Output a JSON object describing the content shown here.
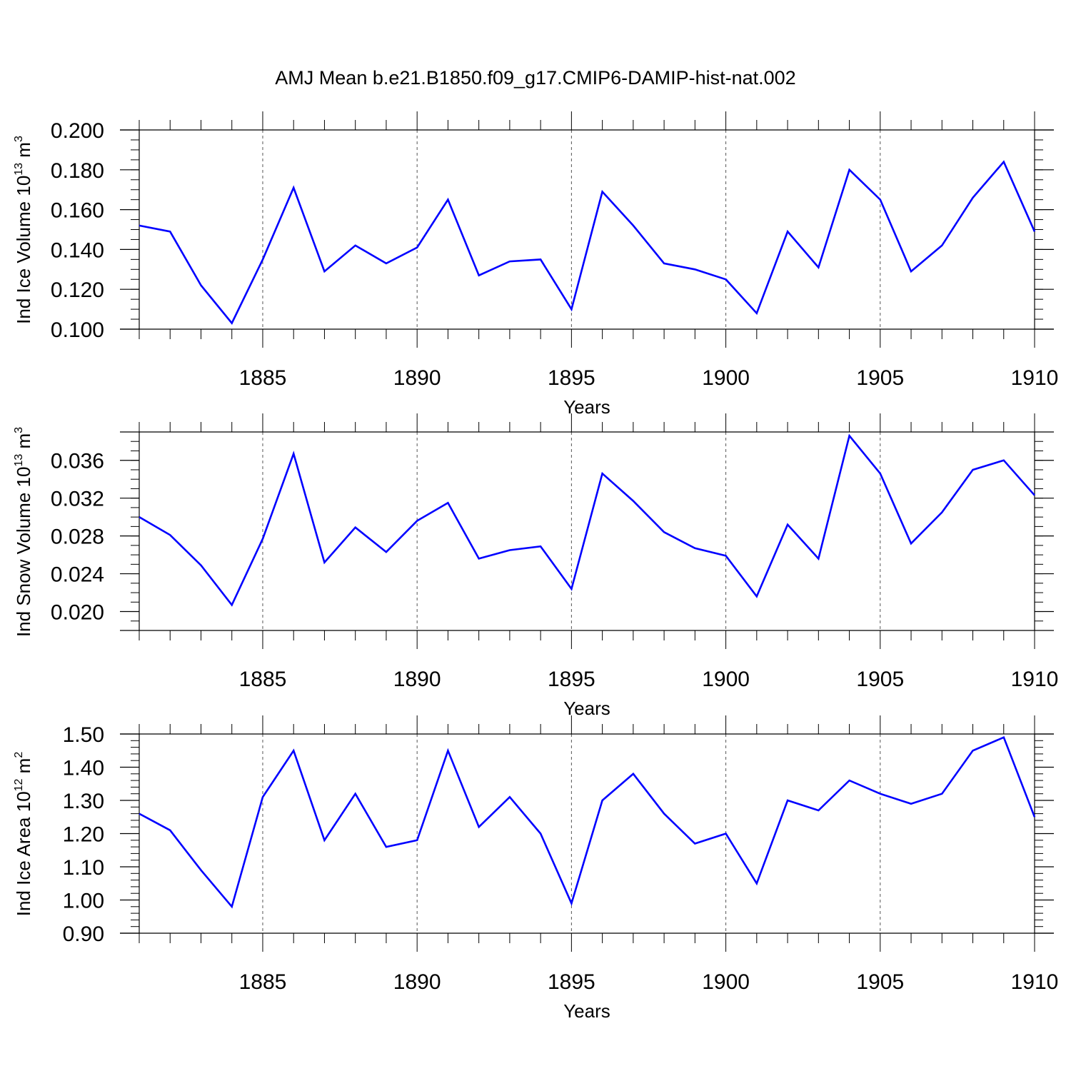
{
  "figure": {
    "title": "AMJ Mean b.e21.B1850.f09_g17.CMIP6-DAMIP-hist-nat.002",
    "line_color": "#0000ff",
    "grid_color": "#555555"
  },
  "chart_data": [
    {
      "type": "line",
      "xlabel": "Years",
      "ylabel": {
        "text": "Ind Ice Volume 10",
        "sup1": "13",
        "unit": " m",
        "sup2": "3"
      },
      "xlim": [
        1881,
        1910
      ],
      "ylim": [
        0.1,
        0.2
      ],
      "xticks": [
        1885,
        1890,
        1895,
        1900,
        1905,
        1910
      ],
      "yticks": [
        0.1,
        0.12,
        0.14,
        0.16,
        0.18,
        0.2
      ],
      "ytick_labels": [
        "0.100",
        "0.120",
        "0.140",
        "0.160",
        "0.180",
        "0.200"
      ],
      "y_minor_step": 0.005,
      "x": [
        1881,
        1882,
        1883,
        1884,
        1885,
        1886,
        1887,
        1888,
        1889,
        1890,
        1891,
        1892,
        1893,
        1894,
        1895,
        1896,
        1897,
        1898,
        1899,
        1900,
        1901,
        1902,
        1903,
        1904,
        1905,
        1906,
        1907,
        1908,
        1909,
        1910
      ],
      "values": [
        0.152,
        0.149,
        0.122,
        0.103,
        0.135,
        0.171,
        0.129,
        0.142,
        0.133,
        0.141,
        0.165,
        0.127,
        0.134,
        0.135,
        0.11,
        0.169,
        0.152,
        0.133,
        0.13,
        0.125,
        0.108,
        0.149,
        0.131,
        0.18,
        0.165,
        0.129,
        0.142,
        0.166,
        0.184,
        0.149
      ]
    },
    {
      "type": "line",
      "xlabel": "Years",
      "ylabel": {
        "text": "Ind Snow Volume 10",
        "sup1": "13",
        "unit": " m",
        "sup2": "3"
      },
      "xlim": [
        1881,
        1910
      ],
      "ylim": [
        0.018,
        0.039
      ],
      "xticks": [
        1885,
        1890,
        1895,
        1900,
        1905,
        1910
      ],
      "yticks": [
        0.02,
        0.024,
        0.028,
        0.032,
        0.036
      ],
      "ytick_labels": [
        "0.020",
        "0.024",
        "0.028",
        "0.032",
        "0.036"
      ],
      "y_minor_step": 0.001,
      "x": [
        1881,
        1882,
        1883,
        1884,
        1885,
        1886,
        1887,
        1888,
        1889,
        1890,
        1891,
        1892,
        1893,
        1894,
        1895,
        1896,
        1897,
        1898,
        1899,
        1900,
        1901,
        1902,
        1903,
        1904,
        1905,
        1906,
        1907,
        1908,
        1909,
        1910
      ],
      "values": [
        0.03,
        0.0281,
        0.0249,
        0.0207,
        0.0277,
        0.0367,
        0.0252,
        0.0289,
        0.0263,
        0.0296,
        0.0315,
        0.0256,
        0.0265,
        0.0269,
        0.0224,
        0.0346,
        0.0317,
        0.0284,
        0.0267,
        0.0259,
        0.0216,
        0.0292,
        0.0256,
        0.0386,
        0.0346,
        0.0272,
        0.0305,
        0.035,
        0.036,
        0.0323
      ]
    },
    {
      "type": "line",
      "xlabel": "Years",
      "ylabel": {
        "text": "Ind Ice Area 10",
        "sup1": "12",
        "unit": " m",
        "sup2": "2"
      },
      "xlim": [
        1881,
        1910
      ],
      "ylim": [
        0.9,
        1.5
      ],
      "xticks": [
        1885,
        1890,
        1895,
        1900,
        1905,
        1910
      ],
      "yticks": [
        0.9,
        1.0,
        1.1,
        1.2,
        1.3,
        1.4,
        1.5
      ],
      "ytick_labels": [
        "0.90",
        "1.00",
        "1.10",
        "1.20",
        "1.30",
        "1.40",
        "1.50"
      ],
      "y_minor_step": 0.02,
      "x": [
        1881,
        1882,
        1883,
        1884,
        1885,
        1886,
        1887,
        1888,
        1889,
        1890,
        1891,
        1892,
        1893,
        1894,
        1895,
        1896,
        1897,
        1898,
        1899,
        1900,
        1901,
        1902,
        1903,
        1904,
        1905,
        1906,
        1907,
        1908,
        1909,
        1910
      ],
      "values": [
        1.26,
        1.21,
        1.09,
        0.98,
        1.31,
        1.45,
        1.18,
        1.32,
        1.16,
        1.18,
        1.45,
        1.22,
        1.31,
        1.2,
        0.99,
        1.3,
        1.38,
        1.26,
        1.17,
        1.2,
        1.05,
        1.3,
        1.27,
        1.36,
        1.32,
        1.29,
        1.32,
        1.45,
        1.49,
        1.25
      ]
    }
  ]
}
